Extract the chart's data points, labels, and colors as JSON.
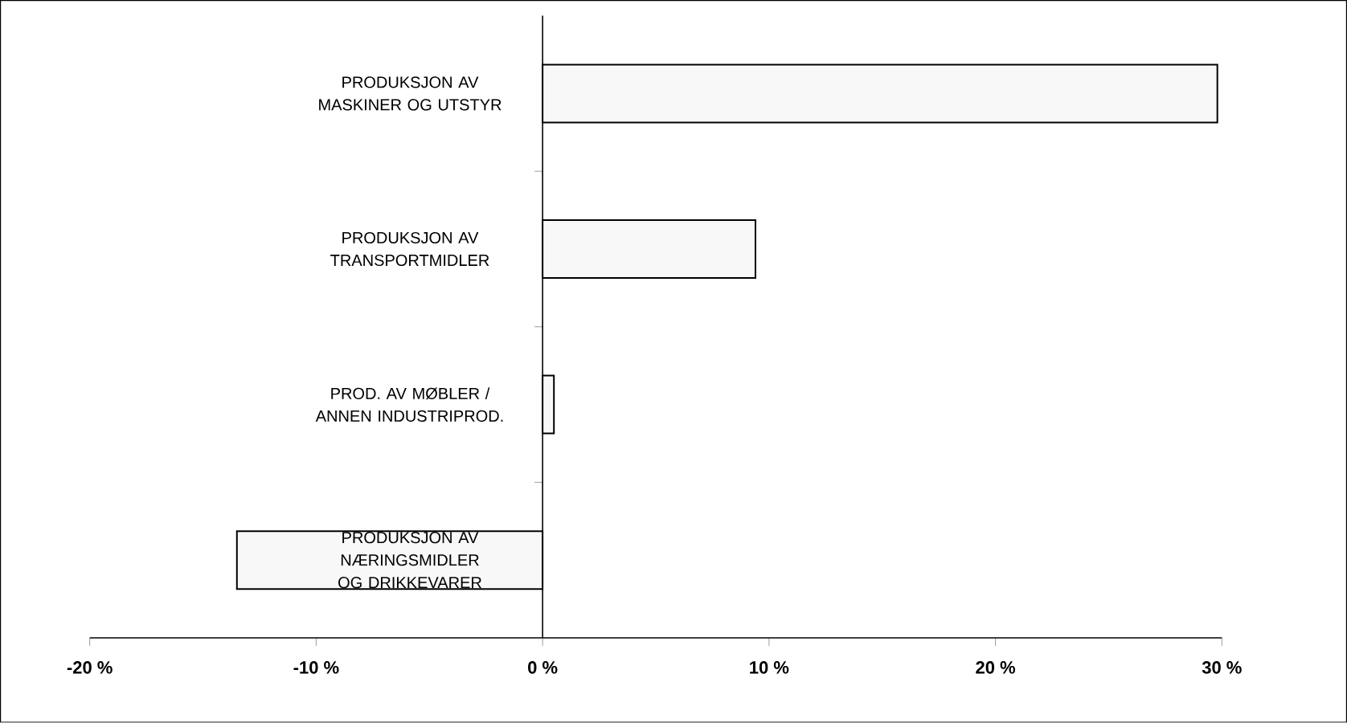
{
  "chart_data": {
    "type": "bar",
    "orientation": "horizontal",
    "categories": [
      "PRODUKSJON AV MASKINER OG UTSTYR",
      "PRODUKSJON AV TRANSPORTMIDLER",
      "PROD. AV MØBLER / ANNEN INDUSTRIPROD.",
      "PRODUKSJON AV NÆRINGSMIDLER OG DRIKKEVARER"
    ],
    "values": [
      29.8,
      9.4,
      0.5,
      -13.5
    ],
    "color": "#f8f8f8",
    "xlim": [
      -20,
      30
    ],
    "xticks": [
      {
        "value": -20,
        "label": "-20 %"
      },
      {
        "value": -10,
        "label": "-10 %"
      },
      {
        "value": 0,
        "label": "0 %"
      },
      {
        "value": 10,
        "label": "10 %"
      },
      {
        "value": 20,
        "label": "20 %"
      },
      {
        "value": 30,
        "label": "30 %"
      }
    ]
  }
}
